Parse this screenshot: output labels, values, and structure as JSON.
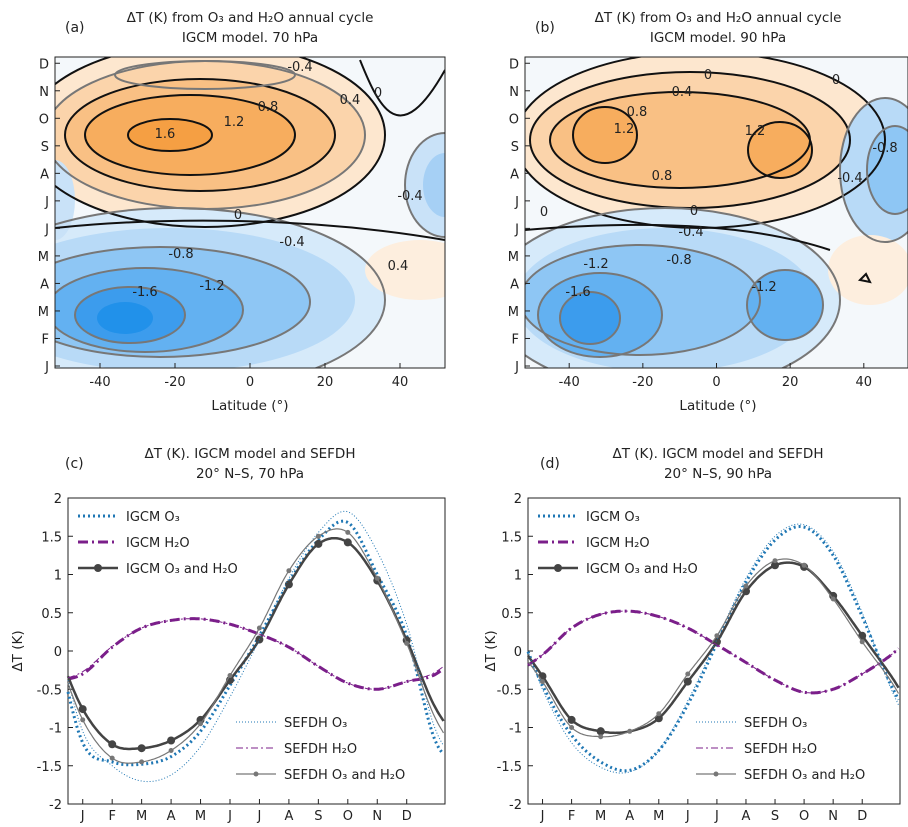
{
  "panels": [
    {
      "label": "(a)",
      "title_line1": "ΔT (K) from O₃ and H₂O annual cycle",
      "title_line2": "IGCM model. 70 hPa",
      "xlabel": "Latitude (°)"
    },
    {
      "label": "(b)",
      "title_line1": "ΔT (K) from O₃ and H₂O annual cycle",
      "title_line2": "IGCM model. 90 hPa",
      "xlabel": "Latitude (°)"
    },
    {
      "label": "(c)",
      "title_line1": "ΔT (K). IGCM model and SEFDH",
      "title_line2": "20° N–S, 70 hPa",
      "ylabel": "ΔT (K)"
    },
    {
      "label": "(d)",
      "title_line1": "ΔT (K). IGCM model and SEFDH",
      "title_line2": "20° N–S, 90 hPa",
      "ylabel": "ΔT (K)"
    }
  ],
  "colors": {
    "warm": "#f7a03c",
    "cold": "#2196f3",
    "igcm_o3": "#1f77b4",
    "h2o": "#7b1f8a",
    "combined": "#444444"
  },
  "chart_data": [
    {
      "type": "heatmap",
      "panel": "a",
      "x_ticks": [
        -40,
        -20,
        0,
        20,
        40
      ],
      "xlim": [
        -52,
        52
      ],
      "y_ticks": [
        "J",
        "F",
        "M",
        "A",
        "M",
        "J",
        "J",
        "A",
        "S",
        "O",
        "N",
        "D"
      ],
      "levels": [
        -1.6,
        -1.2,
        -0.8,
        -0.4,
        0,
        0.4,
        0.8,
        1.2,
        1.6
      ],
      "contour_labels": [
        "-0.4",
        "0.4",
        "0",
        "0.8",
        "1.2",
        "1.6",
        "-0.4",
        "0",
        "-0.4",
        "-0.8",
        "-1.2",
        "-1.6",
        "0.4"
      ],
      "centers": [
        {
          "lat": -12,
          "month": "O",
          "value": 1.75
        },
        {
          "lat": -30,
          "month": "M",
          "value": -1.75
        },
        {
          "lat": 50,
          "month": "A",
          "value": -0.6
        },
        {
          "lat": -52,
          "month": "J",
          "value": -0.5
        },
        {
          "lat": 40,
          "month": "M",
          "value": 0.5
        }
      ]
    },
    {
      "type": "heatmap",
      "panel": "b",
      "x_ticks": [
        -40,
        -20,
        0,
        20,
        40
      ],
      "xlim": [
        -52,
        52
      ],
      "y_ticks": [
        "J",
        "F",
        "M",
        "A",
        "M",
        "J",
        "J",
        "A",
        "S",
        "O",
        "N",
        "D"
      ],
      "levels": [
        -1.6,
        -1.2,
        -0.8,
        -0.4,
        0,
        0.4,
        0.8,
        1.2,
        1.6
      ],
      "contour_labels": [
        "0",
        "0.4",
        "0",
        "0.8",
        "1.2",
        "1.2",
        "-0.8",
        "0.8",
        "-0.4",
        "0",
        "0",
        "-0.4",
        "-0.8",
        "-1.2",
        "-1.6",
        "-1.2"
      ],
      "centers": [
        {
          "lat": -34,
          "month": "O",
          "value": 1.35
        },
        {
          "lat": 16,
          "month": "S",
          "value": 1.35
        },
        {
          "lat": -38,
          "month": "M",
          "value": -1.75
        },
        {
          "lat": 12,
          "month": "M",
          "value": -1.35
        },
        {
          "lat": 50,
          "month": "A",
          "value": -0.9
        },
        {
          "lat": 44,
          "month": "A",
          "value": 0.45
        }
      ]
    },
    {
      "type": "line",
      "panel": "c",
      "x": [
        "J",
        "F",
        "M",
        "A",
        "M",
        "J",
        "J",
        "A",
        "S",
        "O",
        "N",
        "D"
      ],
      "xlim": [
        0.5,
        13.3
      ],
      "ylim": [
        -2,
        2
      ],
      "yticks": [
        -2,
        -1.5,
        -1,
        -0.5,
        0,
        0.5,
        1,
        1.5,
        2
      ],
      "series": [
        {
          "name": "IGCM O₃",
          "values": [
            -1.2,
            -1.45,
            -1.48,
            -1.38,
            -1.05,
            -0.45,
            0.2,
            0.9,
            1.45,
            1.68,
            1.0,
            0.2
          ]
        },
        {
          "name": "IGCM H₂O",
          "values": [
            -0.3,
            0.05,
            0.3,
            0.4,
            0.42,
            0.35,
            0.22,
            0.05,
            -0.2,
            -0.42,
            -0.5,
            -0.4
          ]
        },
        {
          "name": "IGCM O₃ and H₂O",
          "values": [
            -0.76,
            -1.22,
            -1.27,
            -1.17,
            -0.9,
            -0.38,
            0.15,
            0.87,
            1.4,
            1.42,
            0.92,
            0.14
          ]
        },
        {
          "name": "SEFDH O₃",
          "values": [
            -1.05,
            -1.5,
            -1.7,
            -1.62,
            -1.25,
            -0.6,
            0.15,
            0.95,
            1.55,
            1.82,
            1.3,
            0.35
          ]
        },
        {
          "name": "SEFDH H₂O",
          "values": [
            -0.27,
            0.06,
            0.3,
            0.4,
            0.42,
            0.35,
            0.22,
            0.05,
            -0.2,
            -0.42,
            -0.5,
            -0.4
          ]
        },
        {
          "name": "SEFDH O₃ and H₂O",
          "values": [
            -0.9,
            -1.4,
            -1.45,
            -1.3,
            -0.95,
            -0.32,
            0.3,
            1.05,
            1.5,
            1.55,
            0.95,
            0.1
          ]
        }
      ]
    },
    {
      "type": "line",
      "panel": "d",
      "x": [
        "J",
        "F",
        "M",
        "A",
        "M",
        "J",
        "J",
        "A",
        "S",
        "O",
        "N",
        "D"
      ],
      "xlim": [
        0.5,
        13.3
      ],
      "ylim": [
        -2,
        2
      ],
      "yticks": [
        -2,
        -1.5,
        -1,
        -0.5,
        0,
        0.5,
        1,
        1.5,
        2
      ],
      "series": [
        {
          "name": "IGCM O₃",
          "values": [
            -0.45,
            -1.1,
            -1.45,
            -1.56,
            -1.3,
            -0.7,
            0.1,
            0.9,
            1.45,
            1.62,
            1.25,
            0.45
          ]
        },
        {
          "name": "IGCM H₂O",
          "values": [
            -0.05,
            0.3,
            0.48,
            0.52,
            0.45,
            0.3,
            0.08,
            -0.15,
            -0.38,
            -0.54,
            -0.5,
            -0.3
          ]
        },
        {
          "name": "IGCM O₃ and H₂O",
          "values": [
            -0.33,
            -0.9,
            -1.05,
            -1.05,
            -0.88,
            -0.4,
            0.12,
            0.78,
            1.12,
            1.1,
            0.72,
            0.2
          ]
        },
        {
          "name": "SEFDH O₃",
          "values": [
            -0.5,
            -1.2,
            -1.52,
            -1.58,
            -1.3,
            -0.65,
            0.15,
            0.95,
            1.5,
            1.65,
            1.3,
            0.5
          ]
        },
        {
          "name": "SEFDH H₂O",
          "values": [
            -0.05,
            0.3,
            0.48,
            0.52,
            0.45,
            0.3,
            0.08,
            -0.15,
            -0.38,
            -0.54,
            -0.5,
            -0.3
          ]
        },
        {
          "name": "SEFDH O₃ and H₂O",
          "values": [
            -0.4,
            -1.0,
            -1.12,
            -1.05,
            -0.82,
            -0.3,
            0.2,
            0.85,
            1.18,
            1.12,
            0.68,
            0.12
          ]
        }
      ]
    }
  ]
}
